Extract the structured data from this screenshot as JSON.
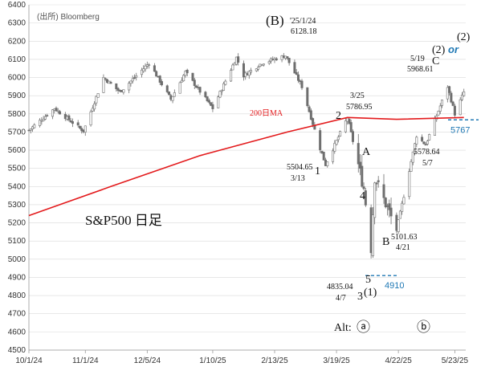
{
  "source": "(出所) Bloomberg",
  "colors": {
    "candle": "#6e6e6e",
    "ma": "#e31a1c",
    "support": "#1f78b4",
    "grid": "#d9d9d9",
    "axis": "#999999"
  },
  "chart_data": {
    "type": "candlestick",
    "title": "S&P500 日足",
    "ylim": [
      4500,
      6400
    ],
    "yticks": [
      4500,
      4600,
      4700,
      4800,
      4900,
      5000,
      5100,
      5200,
      5300,
      5400,
      5500,
      5600,
      5700,
      5800,
      5900,
      6000,
      6100,
      6200,
      6300,
      6400
    ],
    "xticks": [
      {
        "label": "10/1/24",
        "day": 0
      },
      {
        "label": "11/1/24",
        "day": 31
      },
      {
        "label": "12/5/24",
        "day": 65
      },
      {
        "label": "1/10/25",
        "day": 101
      },
      {
        "label": "2/13/25",
        "day": 135
      },
      {
        "label": "3/19/25",
        "day": 169
      },
      {
        "label": "4/22/25",
        "day": 203
      },
      {
        "label": "5/23/25",
        "day": 234
      }
    ],
    "close_anchors": [
      {
        "date": "10/1/24",
        "value": 5710
      },
      {
        "date": "10/15/24",
        "value": 5830
      },
      {
        "date": "10/31/24",
        "value": 5705
      },
      {
        "date": "11/11/24",
        "value": 6000
      },
      {
        "date": "11/20/24",
        "value": 5920
      },
      {
        "date": "12/6/24",
        "value": 6080
      },
      {
        "date": "12/18/24",
        "value": 5880
      },
      {
        "date": "12/26/24",
        "value": 6030
      },
      {
        "date": "1/10/25",
        "value": 5830
      },
      {
        "date": "1/23/25",
        "value": 6110
      },
      {
        "date": "1/27/25",
        "value": 6010
      },
      {
        "date": "2/6/25",
        "value": 6080
      },
      {
        "date": "2/19/25",
        "value": 6120
      },
      {
        "date": "2/28/25",
        "value": 5950
      },
      {
        "date": "3/10/25",
        "value": 5610
      },
      {
        "date": "3/13/25",
        "value": 5520
      },
      {
        "date": "3/25/25",
        "value": 5780
      },
      {
        "date": "4/3/25",
        "value": 5390
      },
      {
        "date": "4/7/25",
        "value": 5060
      },
      {
        "date": "4/9/25",
        "value": 5450
      },
      {
        "date": "4/21/25",
        "value": 5160
      },
      {
        "date": "5/2/25",
        "value": 5680
      },
      {
        "date": "5/7/25",
        "value": 5630
      },
      {
        "date": "5/19/25",
        "value": 5950
      },
      {
        "date": "5/23/25",
        "value": 5800
      },
      {
        "date": "5/28/25",
        "value": 5920
      }
    ],
    "ma_label": "200日MA",
    "ma_200": [
      {
        "date": "10/1/24",
        "value": 5240
      },
      {
        "date": "11/15/24",
        "value": 5400
      },
      {
        "date": "1/3/25",
        "value": 5570
      },
      {
        "date": "2/20/25",
        "value": 5700
      },
      {
        "date": "3/25/25",
        "value": 5780
      },
      {
        "date": "4/21/25",
        "value": 5770
      },
      {
        "date": "5/28/25",
        "value": 5780
      }
    ],
    "support_levels": [
      {
        "value": 5767,
        "label": "5767"
      },
      {
        "value": 4910,
        "label": "4910"
      }
    ],
    "annotations": {
      "wave_B_big": "(B)",
      "wave_B_date": "'25/1/24",
      "wave_B_value": "6128.18",
      "w1_value": "5504.65",
      "w1_date": "3/13",
      "w1_label": "1",
      "w2_label": "2",
      "w2_date": "3/25",
      "w2_value": "5786.95",
      "wA_label": "A",
      "w4_label": "4",
      "w5_label": "5",
      "w3_value": "4835.04",
      "w3_date": "4/7",
      "w3_label": "3",
      "w1_paren": "(1)",
      "wB_label": "B",
      "wB_value": "5101.63",
      "wB_date": "4/21",
      "wC_label": "C",
      "wC_date": "5/19",
      "wC_value": "5968.61",
      "low2_value": "5578.64",
      "low2_date": "5/7",
      "w2_paren": "(2)",
      "or_text": "or",
      "w2_paren_alt": "(2)",
      "alt_label": "Alt:",
      "alt_a": "ⓐ",
      "alt_b": "ⓑ"
    }
  }
}
